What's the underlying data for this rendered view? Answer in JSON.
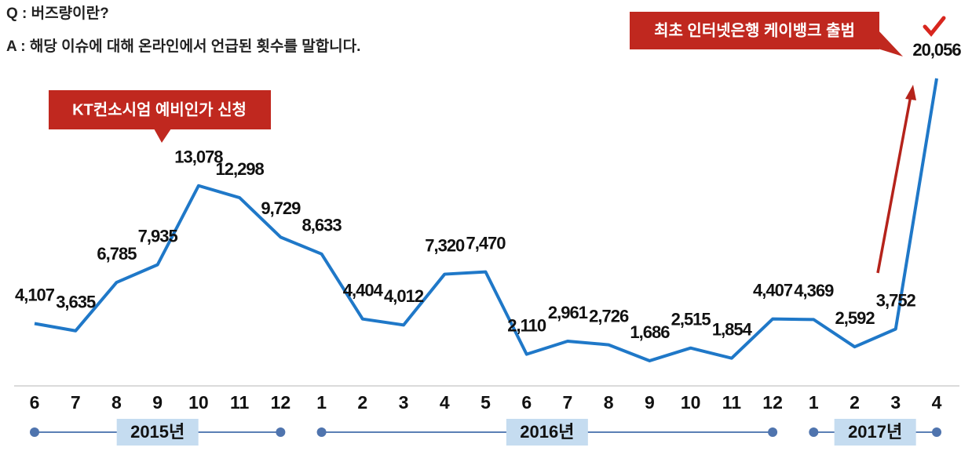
{
  "question": "Q : 버즈량이란?",
  "answer": "A : 해당 이슈에 대해 온라인에서 언급된 횟수를 말합니다.",
  "chart_data": {
    "type": "line",
    "categories": [
      6,
      7,
      8,
      9,
      10,
      11,
      12,
      1,
      2,
      3,
      4,
      5,
      6,
      7,
      8,
      9,
      10,
      11,
      12,
      1,
      2,
      3,
      4
    ],
    "years": [
      "2015년",
      "2016년",
      "2017년"
    ],
    "values": [
      4107,
      3635,
      6785,
      7935,
      13078,
      12298,
      9729,
      8633,
      4404,
      4012,
      7320,
      7470,
      2110,
      2961,
      2726,
      1686,
      2515,
      1854,
      4407,
      4369,
      2592,
      3752,
      20056
    ],
    "value_labels": [
      "4,107",
      "3,635",
      "6,785",
      "7,935",
      "13,078",
      "12,298",
      "9,729",
      "8,633",
      "4,404",
      "4,012",
      "7,320",
      "7,470",
      "2,110",
      "2,961",
      "2,726",
      "1,686",
      "2,515",
      "1,854",
      "4,407",
      "4,369",
      "2,592",
      "3,752",
      "20,056"
    ],
    "color": "#1f78c8",
    "annotations": [
      "KT컨소시엄 예비인가 신청",
      "최초 인터넷은행 케이뱅크 출범"
    ]
  }
}
